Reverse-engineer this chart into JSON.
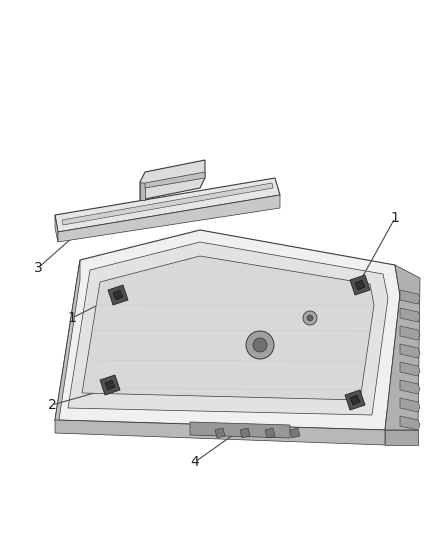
{
  "background_color": "#ffffff",
  "line_color": "#4a4a4a",
  "edge_color": "#3a3a3a",
  "fill_main": "#f0f0f0",
  "fill_top": "#e8e8e8",
  "fill_side": "#c8c8c8",
  "fill_inner": "#dcdcdc",
  "fill_strip": "#e4e4e4",
  "fill_dark": "#505050",
  "label_color": "#222222",
  "label_fontsize": 10,
  "figsize": [
    4.38,
    5.33
  ],
  "dpi": 100
}
